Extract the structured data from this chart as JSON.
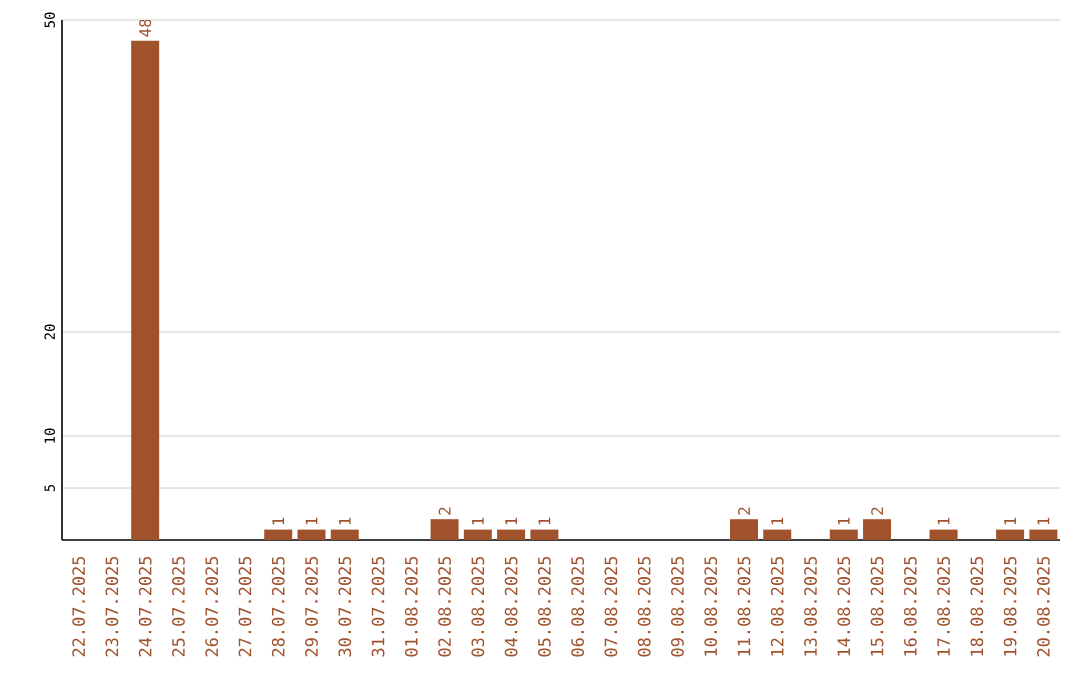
{
  "chart_data": {
    "type": "bar",
    "categories": [
      "22.07.2025",
      "23.07.2025",
      "24.07.2025",
      "25.07.2025",
      "26.07.2025",
      "27.07.2025",
      "28.07.2025",
      "29.07.2025",
      "30.07.2025",
      "31.07.2025",
      "01.08.2025",
      "02.08.2025",
      "03.08.2025",
      "04.08.2025",
      "05.08.2025",
      "06.08.2025",
      "07.08.2025",
      "08.08.2025",
      "09.08.2025",
      "10.08.2025",
      "11.08.2025",
      "12.08.2025",
      "13.08.2025",
      "14.08.2025",
      "15.08.2025",
      "16.08.2025",
      "17.08.2025",
      "18.08.2025",
      "19.08.2025",
      "20.08.2025"
    ],
    "values": [
      null,
      null,
      48,
      null,
      null,
      null,
      1,
      1,
      1,
      null,
      null,
      2,
      1,
      1,
      1,
      null,
      null,
      null,
      null,
      null,
      2,
      1,
      null,
      1,
      2,
      null,
      1,
      null,
      1,
      1
    ],
    "color": "#a0522d",
    "ylim": [
      0,
      50
    ],
    "yticks": [
      5,
      10,
      20,
      50
    ],
    "grid": "y",
    "data_labels": true
  }
}
